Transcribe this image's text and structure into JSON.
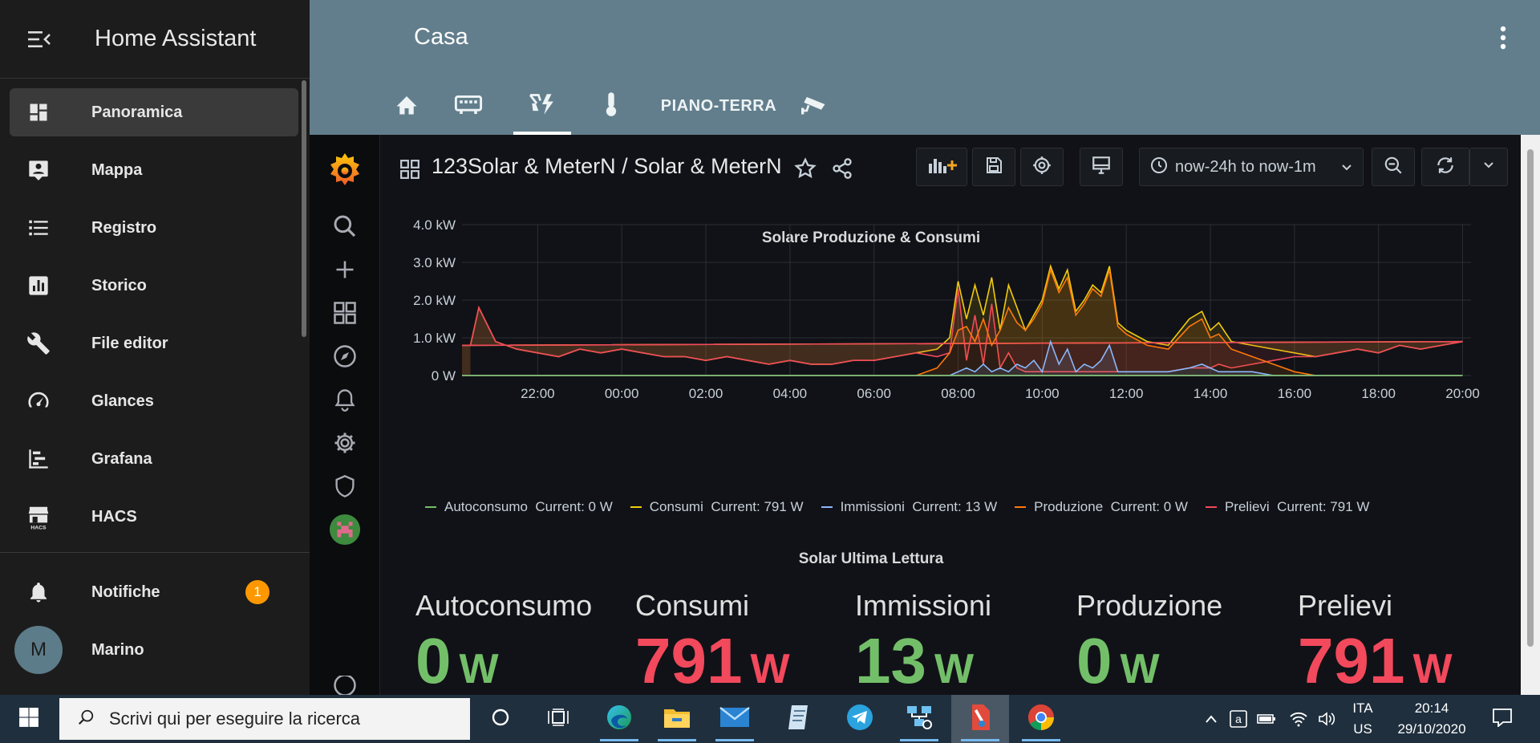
{
  "sidebar": {
    "title": "Home Assistant",
    "items": [
      {
        "label": "Panoramica",
        "icon": "dashboard-icon"
      },
      {
        "label": "Mappa",
        "icon": "map-account-icon"
      },
      {
        "label": "Registro",
        "icon": "list-icon"
      },
      {
        "label": "Storico",
        "icon": "chart-box-icon"
      },
      {
        "label": "File editor",
        "icon": "wrench-icon"
      },
      {
        "label": "Glances",
        "icon": "gauge-icon"
      },
      {
        "label": "Grafana",
        "icon": "chart-timeline-icon"
      },
      {
        "label": "HACS",
        "icon": "hacs-store-icon"
      }
    ],
    "notifications": {
      "label": "Notifiche",
      "count": "1"
    },
    "user": {
      "initial": "M",
      "name": "Marino"
    }
  },
  "topbar": {
    "title": "Casa",
    "tabs": [
      {
        "icon": "home-icon"
      },
      {
        "icon": "server-icon"
      },
      {
        "icon": "solar-power-icon",
        "active": true
      },
      {
        "icon": "thermometer-icon"
      },
      {
        "label": "PIANO-TERRA"
      },
      {
        "icon": "cctv-icon"
      }
    ]
  },
  "grafana": {
    "dashboard_title": "123Solar & MeterN / Solar & MeterN",
    "time_range": "now-24h to now-1m",
    "chart_panel_title": "Solare Produzione & Consumi",
    "stat_panel_title": "Solar Ultima Lettura",
    "legend": [
      {
        "name": "Autoconsumo",
        "current": "Current: 0 W",
        "color": "#73bf69"
      },
      {
        "name": "Consumi",
        "current": "Current: 791 W",
        "color": "#f2cc0c"
      },
      {
        "name": "Immissioni",
        "current": "Current: 13 W",
        "color": "#8ab8ff"
      },
      {
        "name": "Produzione",
        "current": "Current: 0 W",
        "color": "#ff780a"
      },
      {
        "name": "Prelievi",
        "current": "Current: 791 W",
        "color": "#f2495c"
      }
    ],
    "stats": [
      {
        "name": "Autoconsumo",
        "value": "0",
        "unit": "W",
        "color": "#73bf69"
      },
      {
        "name": "Consumi",
        "value": "791",
        "unit": "W",
        "color": "#f2495c"
      },
      {
        "name": "Immissioni",
        "value": "13",
        "unit": "W",
        "color": "#73bf69"
      },
      {
        "name": "Produzione",
        "value": "0",
        "unit": "W",
        "color": "#73bf69"
      },
      {
        "name": "Prelievi",
        "value": "791",
        "unit": "W",
        "color": "#f2495c"
      }
    ]
  },
  "chart_data": {
    "type": "area",
    "title": "Solare Produzione & Consumi",
    "x_ticks": [
      "22:00",
      "00:00",
      "02:00",
      "04:00",
      "06:00",
      "08:00",
      "10:00",
      "12:00",
      "14:00",
      "16:00",
      "18:00",
      "20:00"
    ],
    "y_ticks": [
      "0 W",
      "1.0 kW",
      "2.0 kW",
      "3.0 kW",
      "4.0 kW"
    ],
    "ylim": [
      0,
      4.0
    ],
    "y_unit": "kW",
    "x_hours": [
      20.4,
      20.6,
      21,
      21.5,
      22,
      22.5,
      23,
      23.5,
      0,
      0.5,
      1,
      1.5,
      2,
      2.5,
      3,
      3.5,
      4,
      4.5,
      5,
      5.5,
      6,
      6.5,
      7,
      7.5,
      7.8,
      8,
      8.2,
      8.4,
      8.6,
      8.8,
      9,
      9.2,
      9.4,
      9.6,
      9.8,
      10,
      10.2,
      10.4,
      10.6,
      10.8,
      11,
      11.2,
      11.4,
      11.6,
      11.8,
      12,
      12.5,
      13,
      13.5,
      13.8,
      14,
      14.2,
      14.5,
      15,
      15.5,
      16,
      16.5,
      17,
      17.5,
      18,
      18.5,
      19,
      19.5,
      20,
      20.2
    ],
    "series": [
      {
        "name": "Consumi",
        "color": "#f2cc0c",
        "values": [
          0.8,
          1.8,
          0.9,
          0.7,
          0.6,
          0.5,
          0.7,
          0.6,
          0.7,
          0.6,
          0.5,
          0.5,
          0.4,
          0.5,
          0.4,
          0.3,
          0.4,
          0.3,
          0.3,
          0.4,
          0.4,
          0.5,
          0.6,
          0.7,
          1.0,
          2.5,
          1.5,
          2.4,
          1.6,
          2.6,
          1.2,
          2.4,
          1.8,
          1.2,
          1.6,
          2.0,
          2.9,
          2.3,
          2.8,
          1.7,
          2.0,
          2.4,
          2.2,
          2.9,
          1.4,
          1.2,
          0.9,
          0.8,
          1.5,
          1.7,
          1.2,
          1.4,
          0.9,
          0.8,
          0.7,
          0.6,
          0.5,
          0.6,
          0.7,
          0.6,
          0.8,
          0.7,
          0.8,
          0.9,
          0.8
        ]
      },
      {
        "name": "Prelievi",
        "color": "#f2495c",
        "values": [
          0.8,
          1.8,
          0.9,
          0.7,
          0.6,
          0.5,
          0.7,
          0.6,
          0.7,
          0.6,
          0.5,
          0.5,
          0.4,
          0.5,
          0.4,
          0.3,
          0.4,
          0.3,
          0.3,
          0.4,
          0.4,
          0.5,
          0.6,
          0.5,
          0.6,
          2.3,
          0.4,
          1.6,
          0.3,
          1.9,
          0.2,
          0.6,
          0.2,
          0.1,
          0.1,
          0.1,
          0.1,
          0.1,
          0.1,
          0.1,
          0.1,
          0.1,
          0.1,
          0.1,
          0.1,
          0.1,
          0.1,
          0.1,
          0.2,
          0.2,
          0.2,
          0.3,
          0.2,
          0.3,
          0.4,
          0.5,
          0.5,
          0.6,
          0.7,
          0.6,
          0.8,
          0.7,
          0.8,
          0.9,
          0.8
        ]
      },
      {
        "name": "Produzione",
        "color": "#ff780a",
        "values": [
          0,
          0,
          0,
          0,
          0,
          0,
          0,
          0,
          0,
          0,
          0,
          0,
          0,
          0,
          0,
          0,
          0,
          0,
          0,
          0,
          0,
          0,
          0,
          0.2,
          0.6,
          1.2,
          1.3,
          0.9,
          1.5,
          0.8,
          1.2,
          1.8,
          1.4,
          1.2,
          1.5,
          1.9,
          2.8,
          2.2,
          2.6,
          1.6,
          1.9,
          2.3,
          2.1,
          2.8,
          1.3,
          1.1,
          0.8,
          0.7,
          1.3,
          1.5,
          1.0,
          1.1,
          0.7,
          0.5,
          0.3,
          0.1,
          0,
          0,
          0,
          0,
          0,
          0,
          0,
          0,
          0
        ]
      },
      {
        "name": "Immissioni",
        "color": "#8ab8ff",
        "values": [
          0,
          0,
          0,
          0,
          0,
          0,
          0,
          0,
          0,
          0,
          0,
          0,
          0,
          0,
          0,
          0,
          0,
          0,
          0,
          0,
          0,
          0,
          0,
          0,
          0,
          0.1,
          0.2,
          0.1,
          0.3,
          0.1,
          0.2,
          0.1,
          0.3,
          0.2,
          0.4,
          0.1,
          0.9,
          0.3,
          0.7,
          0.1,
          0.3,
          0.2,
          0.4,
          0.8,
          0.1,
          0.1,
          0.1,
          0.1,
          0.2,
          0.3,
          0.2,
          0.1,
          0.1,
          0.1,
          0,
          0,
          0,
          0,
          0,
          0,
          0,
          0,
          0,
          0,
          0
        ]
      },
      {
        "name": "Autoconsumo",
        "color": "#73bf69",
        "values": [
          0,
          0,
          0,
          0,
          0,
          0,
          0,
          0,
          0,
          0,
          0,
          0,
          0,
          0,
          0,
          0,
          0,
          0,
          0,
          0,
          0,
          0,
          0,
          0,
          0,
          0,
          0,
          0,
          0,
          0,
          0,
          0,
          0,
          0,
          0,
          0,
          0,
          0,
          0,
          0,
          0,
          0,
          0,
          0,
          0,
          0,
          0,
          0,
          0,
          0,
          0,
          0,
          0,
          0,
          0,
          0,
          0,
          0,
          0,
          0,
          0,
          0,
          0,
          0,
          0
        ]
      }
    ]
  },
  "taskbar": {
    "search_placeholder": "Scrivi qui per eseguire la ricerca",
    "lang_line1": "ITA",
    "lang_line2": "US",
    "time": "20:14",
    "date": "29/10/2020"
  }
}
